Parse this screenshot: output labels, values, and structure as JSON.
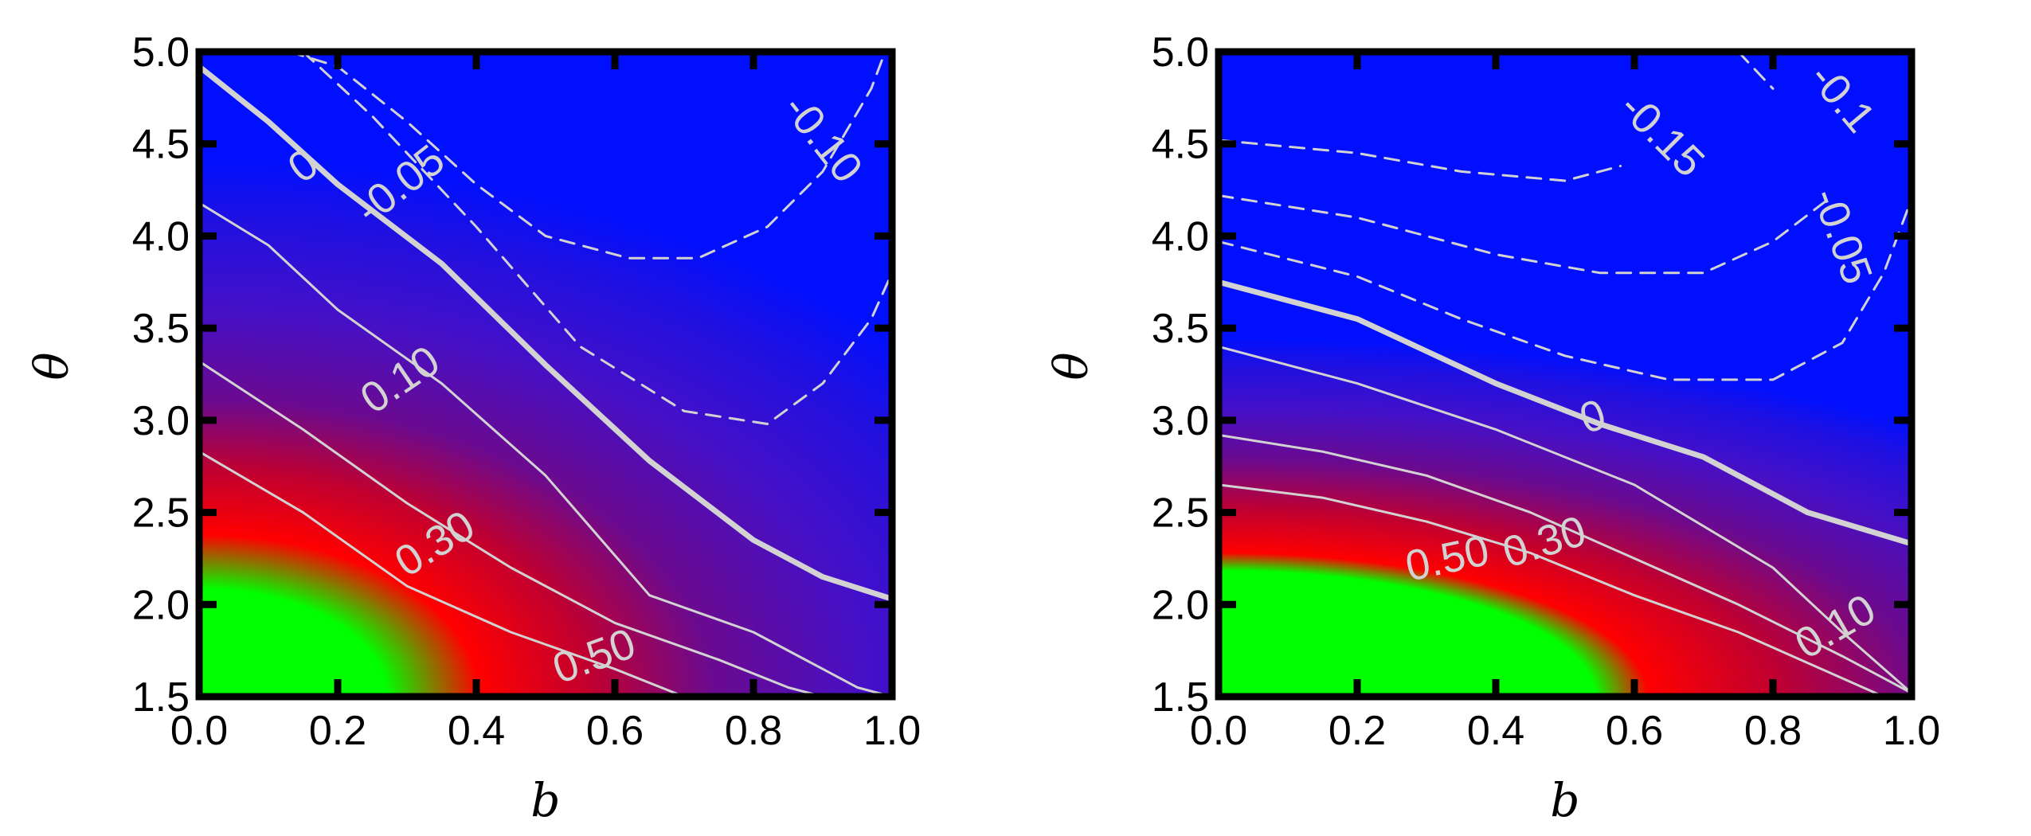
{
  "chart_data": [
    {
      "type": "heatmap",
      "title": "",
      "xlabel": "b",
      "ylabel": "θ",
      "xlim": [
        0.0,
        1.0
      ],
      "ylim": [
        1.5,
        5.0
      ],
      "xticks": [
        "0.0",
        "0.2",
        "0.4",
        "0.6",
        "0.8",
        "1.0"
      ],
      "yticks": [
        "1.5",
        "2.0",
        "2.5",
        "3.0",
        "3.5",
        "4.0",
        "4.5",
        "5.0"
      ],
      "colormap": [
        "#00ff00",
        "#ff0000",
        "#4a10c0",
        "#0010ff"
      ],
      "grid": false,
      "contours": [
        {
          "level": "0.50",
          "style": "solid",
          "points": [
            [
              0.0,
              2.83
            ],
            [
              0.15,
              2.5
            ],
            [
              0.3,
              2.1
            ],
            [
              0.45,
              1.85
            ],
            [
              0.6,
              1.65
            ],
            [
              0.7,
              1.5
            ]
          ],
          "label": {
            "text": "0.50",
            "at": [
              0.57,
              1.72
            ],
            "angle": 20
          }
        },
        {
          "level": "0.30",
          "style": "solid",
          "points": [
            [
              0.0,
              3.32
            ],
            [
              0.15,
              2.95
            ],
            [
              0.3,
              2.55
            ],
            [
              0.45,
              2.2
            ],
            [
              0.6,
              1.9
            ],
            [
              0.75,
              1.7
            ],
            [
              0.85,
              1.55
            ],
            [
              0.9,
              1.5
            ]
          ],
          "label": {
            "text": "0.30",
            "at": [
              0.34,
              2.33
            ],
            "angle": 32
          }
        },
        {
          "level": "0.10",
          "style": "solid",
          "points": [
            [
              0.0,
              4.18
            ],
            [
              0.1,
              3.95
            ],
            [
              0.2,
              3.6
            ],
            [
              0.35,
              3.2
            ],
            [
              0.5,
              2.7
            ],
            [
              0.65,
              2.05
            ],
            [
              0.8,
              1.85
            ],
            [
              0.95,
              1.55
            ],
            [
              1.0,
              1.5
            ]
          ],
          "label": {
            "text": "0.10",
            "at": [
              0.29,
              3.22
            ],
            "angle": 34
          }
        },
        {
          "level": "0",
          "style": "solid",
          "bold": true,
          "points": [
            [
              0.0,
              4.92
            ],
            [
              0.1,
              4.62
            ],
            [
              0.2,
              4.28
            ],
            [
              0.35,
              3.85
            ],
            [
              0.5,
              3.3
            ],
            [
              0.65,
              2.78
            ],
            [
              0.8,
              2.35
            ],
            [
              0.9,
              2.15
            ],
            [
              1.0,
              2.03
            ]
          ],
          "label": {
            "text": "0",
            "at": [
              0.15,
              4.38
            ],
            "angle": 37
          }
        },
        {
          "level": "-0.05",
          "style": "dashed",
          "points": [
            [
              0.15,
              5.0
            ],
            [
              0.25,
              4.65
            ],
            [
              0.4,
              4.05
            ],
            [
              0.55,
              3.4
            ],
            [
              0.7,
              3.05
            ],
            [
              0.82,
              2.98
            ],
            [
              0.9,
              3.2
            ],
            [
              0.97,
              3.55
            ],
            [
              1.0,
              3.8
            ]
          ],
          "label": {
            "text": "-0.05",
            "at": [
              0.29,
              4.28
            ],
            "angle": 38
          }
        },
        {
          "level": "-0.10",
          "style": "dashed",
          "points": [
            [
              0.13,
              5.0
            ],
            [
              0.2,
              4.92
            ],
            [
              0.3,
              4.62
            ],
            [
              0.4,
              4.28
            ],
            [
              0.5,
              4.0
            ],
            [
              0.62,
              3.88
            ],
            [
              0.72,
              3.88
            ],
            [
              0.82,
              4.05
            ],
            [
              0.9,
              4.35
            ],
            [
              0.97,
              4.8
            ],
            [
              0.99,
              5.0
            ]
          ],
          "label": {
            "text": "-0.10",
            "at": [
              0.9,
              4.53
            ],
            "angle": -52
          }
        }
      ]
    },
    {
      "type": "heatmap",
      "title": "",
      "xlabel": "b",
      "ylabel": "θ",
      "xlim": [
        0.0,
        1.0
      ],
      "ylim": [
        1.5,
        5.0
      ],
      "xticks": [
        "0.0",
        "0.2",
        "0.4",
        "0.6",
        "0.8",
        "1.0"
      ],
      "yticks": [
        "1.5",
        "2.0",
        "2.5",
        "3.0",
        "3.5",
        "4.0",
        "4.5",
        "5.0"
      ],
      "colormap": [
        "#00ff00",
        "#ff0000",
        "#4a10c0",
        "#0010ff"
      ],
      "grid": false,
      "contours": [
        {
          "level": "0.50",
          "style": "solid",
          "points": [
            [
              0.0,
              2.65
            ],
            [
              0.15,
              2.58
            ],
            [
              0.3,
              2.45
            ],
            [
              0.45,
              2.28
            ],
            [
              0.6,
              2.05
            ],
            [
              0.75,
              1.85
            ],
            [
              0.9,
              1.6
            ],
            [
              0.96,
              1.5
            ]
          ],
          "label": {
            "text": "0.50",
            "at": [
              0.33,
              2.25
            ],
            "angle": 12
          }
        },
        {
          "level": "0.30",
          "style": "solid",
          "points": [
            [
              0.0,
              2.92
            ],
            [
              0.15,
              2.83
            ],
            [
              0.3,
              2.7
            ],
            [
              0.45,
              2.5
            ],
            [
              0.6,
              2.25
            ],
            [
              0.75,
              2.0
            ],
            [
              0.9,
              1.72
            ],
            [
              1.0,
              1.52
            ]
          ],
          "label": {
            "text": "0.30",
            "at": [
              0.47,
              2.34
            ],
            "angle": 17
          }
        },
        {
          "level": "0.10",
          "style": "solid",
          "points": [
            [
              0.0,
              3.4
            ],
            [
              0.2,
              3.2
            ],
            [
              0.4,
              2.95
            ],
            [
              0.6,
              2.65
            ],
            [
              0.8,
              2.2
            ],
            [
              0.9,
              1.85
            ],
            [
              1.0,
              1.52
            ]
          ],
          "label": {
            "text": "0.10",
            "at": [
              0.89,
              1.88
            ],
            "angle": 30
          }
        },
        {
          "level": "0",
          "style": "solid",
          "bold": true,
          "points": [
            [
              0.0,
              3.75
            ],
            [
              0.2,
              3.55
            ],
            [
              0.4,
              3.2
            ],
            [
              0.55,
              2.98
            ],
            [
              0.7,
              2.8
            ],
            [
              0.85,
              2.5
            ],
            [
              1.0,
              2.33
            ]
          ],
          "label": {
            "text": "0",
            "at": [
              0.54,
              3.02
            ],
            "angle": 18
          }
        },
        {
          "level": "-0.05",
          "style": "dashed",
          "points": [
            [
              0.0,
              3.97
            ],
            [
              0.2,
              3.78
            ],
            [
              0.35,
              3.55
            ],
            [
              0.5,
              3.35
            ],
            [
              0.65,
              3.22
            ],
            [
              0.8,
              3.22
            ],
            [
              0.9,
              3.42
            ],
            [
              0.96,
              3.8
            ],
            [
              1.0,
              4.2
            ]
          ],
          "label": {
            "text": "-0.05",
            "at": [
              0.9,
              4.0
            ],
            "angle": -70
          }
        },
        {
          "level": "-0.05",
          "style": "dashed",
          "points": [
            [
              0.0,
              4.22
            ],
            [
              0.2,
              4.1
            ],
            [
              0.4,
              3.9
            ],
            [
              0.55,
              3.8
            ],
            [
              0.7,
              3.8
            ],
            [
              0.8,
              3.97
            ],
            [
              0.88,
              4.2
            ]
          ]
        },
        {
          "level": "-0.15",
          "style": "dashed",
          "points": [
            [
              0.0,
              4.52
            ],
            [
              0.2,
              4.45
            ],
            [
              0.35,
              4.35
            ],
            [
              0.5,
              4.3
            ],
            [
              0.58,
              4.38
            ]
          ],
          "label": {
            "text": "-0.15",
            "at": [
              0.64,
              4.55
            ],
            "angle": -45
          }
        },
        {
          "level": "-0.1",
          "style": "dashed",
          "points": [
            [
              0.75,
              5.0
            ],
            [
              0.8,
              4.8
            ]
          ],
          "label": {
            "text": "-0.1",
            "at": [
              0.9,
              4.75
            ],
            "angle": -50
          }
        }
      ]
    }
  ]
}
